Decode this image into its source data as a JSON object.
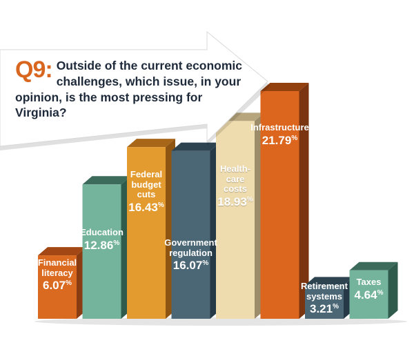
{
  "question": {
    "number": "Q9:",
    "text": "Outside of the current economic challenges, which issue, in your opinion, is the most pressing for Virginia?"
  },
  "chart_data": {
    "type": "bar",
    "title": "Outside of the current economic challenges, which issue, in your opinion, is the most pressing for Virginia?",
    "unit": "%",
    "categories": [
      "Financial literacy",
      "Education",
      "Federal budget cuts",
      "Government regulation",
      "Health-care costs",
      "Infrastructure",
      "Retirement systems",
      "Taxes"
    ],
    "values": [
      6.07,
      12.86,
      16.43,
      16.07,
      18.93,
      21.79,
      3.21,
      4.64
    ],
    "label_lines": [
      [
        "Financial",
        "literacy"
      ],
      [
        "Education"
      ],
      [
        "Federal",
        "budget",
        "cuts"
      ],
      [
        "Government",
        "regulation"
      ],
      [
        "Health-",
        "care",
        "costs"
      ],
      [
        "Infrastructure"
      ],
      [
        "Retirement",
        "systems"
      ],
      [
        "Taxes"
      ]
    ],
    "value_labels": [
      "6.07",
      "12.86",
      "16.43",
      "16.07",
      "18.93",
      "21.79",
      "3.21",
      "4.64"
    ],
    "colors": {
      "front": [
        "#db6a21",
        "#74b49d",
        "#e39a2f",
        "#4b6675",
        "#eedbae",
        "#dc661e",
        "#4b6675",
        "#74b49d"
      ],
      "side": [
        "#8a3d12",
        "#2f5b4d",
        "#8d5412",
        "#253a46",
        "#9c8c6a",
        "#7a3410",
        "#253a46",
        "#2f5b4d"
      ],
      "top": [
        "#a34814",
        "#3c6b5c",
        "#a86618",
        "#2d4450",
        "#b7a57e",
        "#93400f",
        "#2d4450",
        "#3c6b5c"
      ]
    },
    "ylim": [
      0,
      21.79
    ],
    "grid": false,
    "legend": "none"
  }
}
